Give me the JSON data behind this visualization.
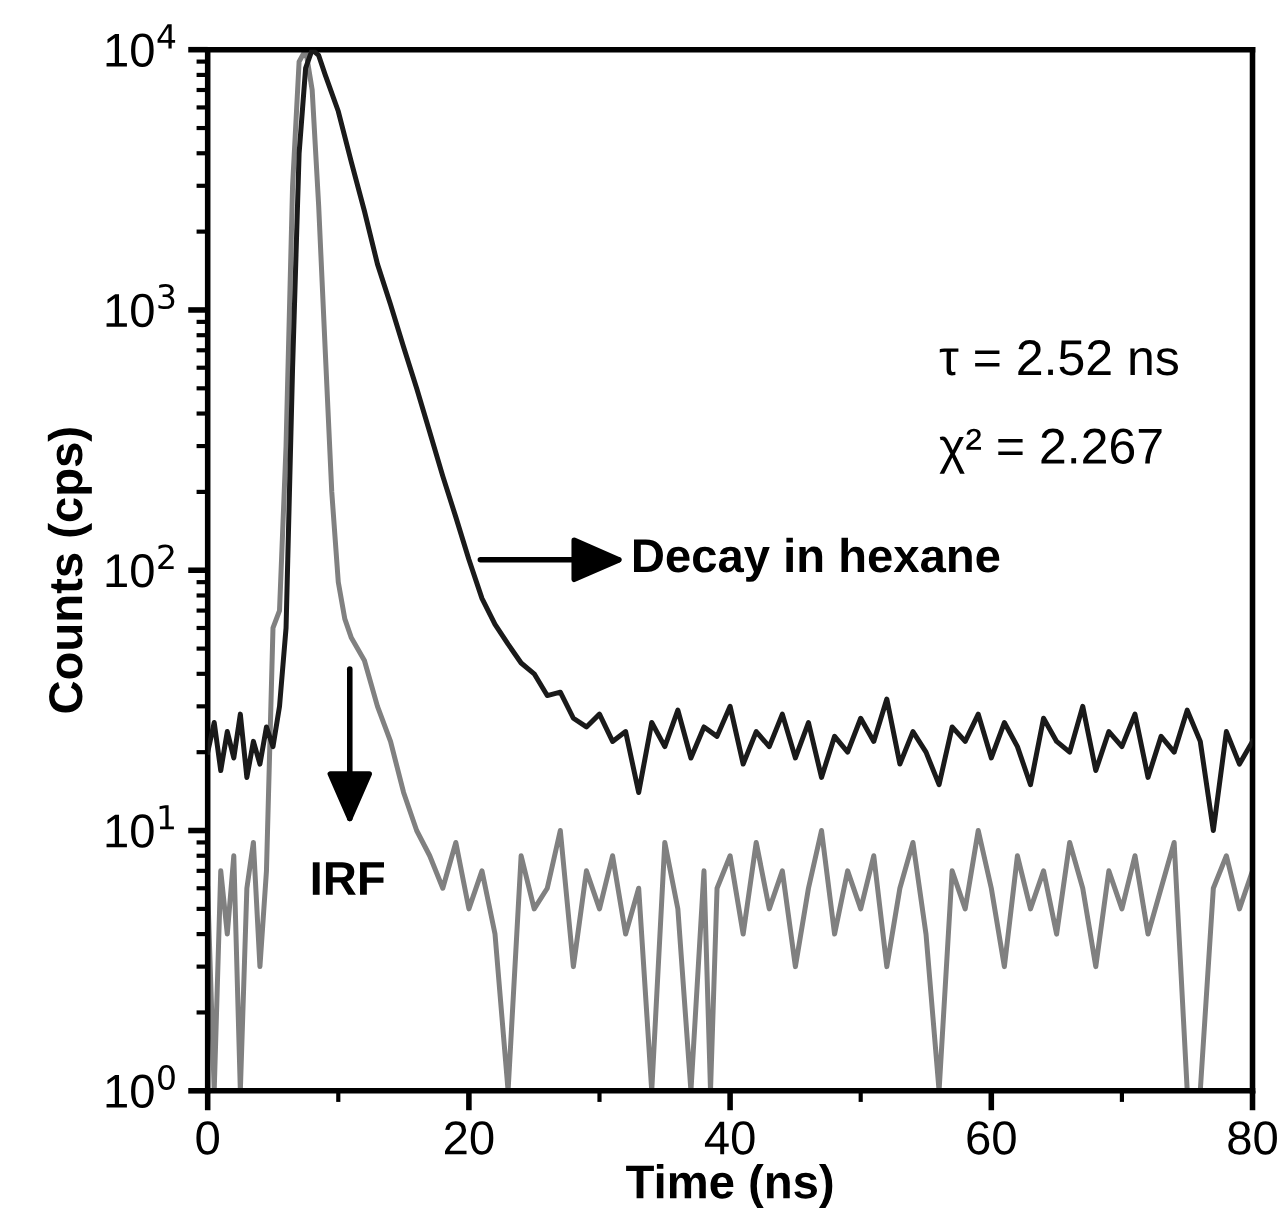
{
  "chart_data": {
    "type": "line",
    "xlabel": "Time (ns)",
    "ylabel": "Counts (cps)",
    "log": "y",
    "grid": false,
    "marker": "none",
    "line_style": "solid",
    "xlim": [
      0,
      80
    ],
    "xticks": [
      0,
      20,
      40,
      60,
      80
    ],
    "ylim": [
      1,
      10000
    ],
    "yticks": [
      {
        "value": 1,
        "label": "10$^{0}$"
      },
      {
        "value": 10,
        "label": "10$^{1}$"
      },
      {
        "value": 100,
        "label": "10$^{2}$"
      },
      {
        "value": 1000,
        "label": "10$^{3}$"
      },
      {
        "value": 10000,
        "label": "10$^{4}$"
      }
    ],
    "series": [
      {
        "color": "#1a1a1a",
        "x": [
          0,
          0.5,
          1,
          1.5,
          2,
          2.5,
          3,
          3.5,
          4,
          4.5,
          5,
          5.5,
          6,
          6.5,
          7,
          7.5,
          8,
          8.5,
          9,
          10,
          11,
          12,
          13,
          14,
          15,
          16,
          17,
          18,
          19,
          20,
          21,
          22,
          23,
          24,
          25,
          26,
          27,
          28,
          29,
          30,
          31,
          32,
          33,
          34,
          35,
          36,
          37,
          38,
          39,
          40,
          41,
          42,
          43,
          44,
          45,
          46,
          47,
          48,
          49,
          50,
          51,
          52,
          53,
          54,
          55,
          56,
          57,
          58,
          59,
          60,
          61,
          62,
          63,
          64,
          65,
          66,
          67,
          68,
          69,
          70,
          71,
          72,
          73,
          74,
          75,
          76,
          77,
          78,
          79,
          80
        ],
        "values": [
          20,
          26,
          17,
          24,
          19,
          28,
          16,
          22,
          18,
          25,
          21,
          30,
          60,
          600,
          4000,
          8500,
          10000,
          9500,
          8000,
          5800,
          3700,
          2400,
          1500,
          1050,
          720,
          500,
          340,
          230,
          160,
          110,
          78,
          62,
          52,
          44,
          40,
          33,
          34,
          27,
          25,
          28,
          22,
          24,
          14,
          26,
          21,
          29,
          19,
          25,
          23,
          30,
          18,
          24,
          21,
          28,
          19,
          26,
          16,
          23,
          20,
          27,
          22,
          32,
          18,
          24,
          20,
          15,
          25,
          22,
          28,
          19,
          26,
          21,
          15,
          27,
          22,
          20,
          30,
          17,
          24,
          21,
          28,
          16,
          23,
          20,
          29,
          22,
          10,
          24,
          18,
          22
        ]
      },
      {
        "color": "#808080",
        "x": [
          0,
          0.5,
          1,
          1.5,
          2,
          2.5,
          3,
          3.5,
          4,
          4.5,
          5,
          5.5,
          6,
          6.5,
          7,
          7.5,
          8,
          8.5,
          9,
          9.5,
          10,
          10.5,
          11,
          12,
          13,
          14,
          15,
          16,
          17,
          18,
          19,
          20,
          21,
          22,
          23,
          24,
          25,
          26,
          27,
          28,
          29,
          30,
          31,
          32,
          33,
          34,
          35,
          36,
          37,
          38,
          38.5,
          39,
          40,
          41,
          42,
          43,
          44,
          45,
          46,
          47,
          48,
          49,
          50,
          51,
          52,
          53,
          54,
          55,
          56,
          57,
          58,
          59,
          60,
          61,
          62,
          63,
          64,
          65,
          66,
          67,
          68,
          69,
          70,
          71,
          72,
          73,
          74,
          75,
          76,
          77,
          78,
          79,
          80
        ],
        "values": [
          6,
          1,
          7,
          4,
          8,
          1,
          6,
          9,
          3,
          7,
          60,
          70,
          300,
          3000,
          9000,
          10000,
          7000,
          2500,
          700,
          200,
          90,
          65,
          55,
          45,
          30,
          22,
          14,
          10,
          8,
          6,
          9,
          5,
          7,
          4,
          1,
          8,
          5,
          6,
          10,
          3,
          7,
          5,
          8,
          4,
          6,
          1,
          9,
          5,
          1,
          7,
          1,
          6,
          8,
          4,
          9,
          5,
          7,
          3,
          6,
          10,
          4,
          7,
          5,
          8,
          3,
          6,
          9,
          4,
          1,
          7,
          5,
          10,
          6,
          3,
          8,
          5,
          7,
          4,
          9,
          6,
          3,
          7,
          5,
          8,
          4,
          6,
          9,
          1,
          1,
          6,
          8,
          5,
          7
        ]
      }
    ],
    "annotations": [
      "τ = 2.52 ns",
      "χ² = 2.267",
      "Decay in hexane",
      "IRF"
    ]
  }
}
